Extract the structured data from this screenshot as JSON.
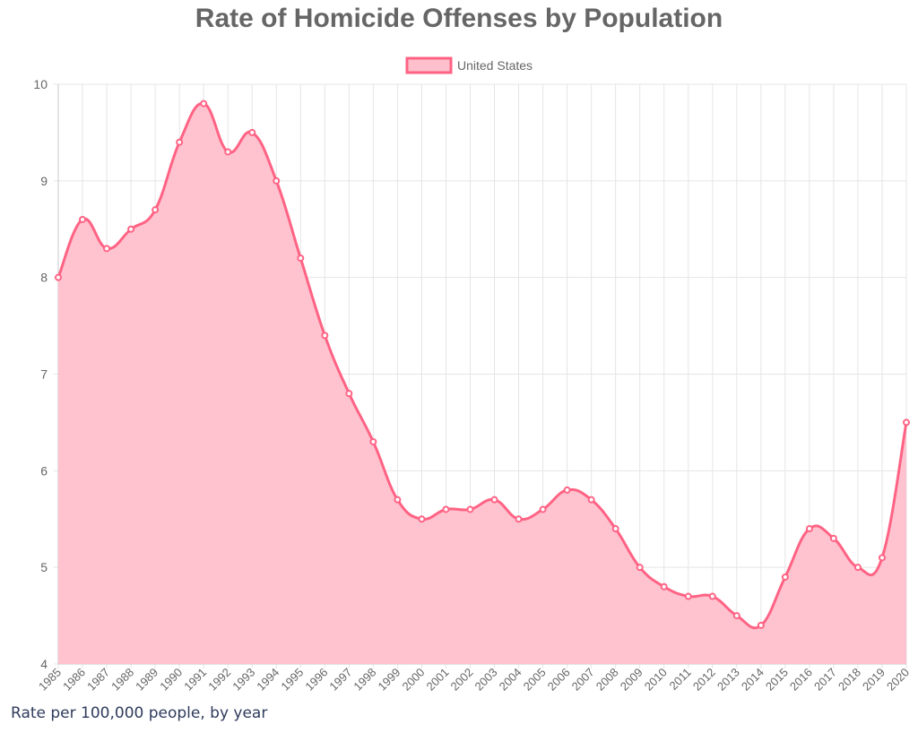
{
  "chart_data": {
    "type": "area",
    "title": "Rate of Homicide Offenses by Population",
    "x": [
      "1985",
      "1986",
      "1987",
      "1988",
      "1989",
      "1990",
      "1991",
      "1992",
      "1993",
      "1994",
      "1995",
      "1996",
      "1997",
      "1998",
      "1999",
      "2000",
      "2001",
      "2002",
      "2003",
      "2004",
      "2005",
      "2006",
      "2007",
      "2008",
      "2009",
      "2010",
      "2011",
      "2012",
      "2013",
      "2014",
      "2015",
      "2016",
      "2017",
      "2018",
      "2019",
      "2020"
    ],
    "series": [
      {
        "name": "United States",
        "values": [
          8.0,
          8.6,
          8.3,
          8.5,
          8.7,
          9.4,
          9.8,
          9.3,
          9.5,
          9.0,
          8.2,
          7.4,
          6.8,
          6.3,
          5.7,
          5.5,
          5.6,
          5.6,
          5.7,
          5.5,
          5.6,
          5.8,
          5.7,
          5.4,
          5.0,
          4.8,
          4.7,
          4.7,
          4.5,
          4.4,
          4.9,
          5.4,
          5.3,
          5.0,
          5.1,
          6.5
        ]
      }
    ],
    "ylim": [
      4,
      10
    ],
    "yticks": [
      "4",
      "5",
      "6",
      "7",
      "8",
      "9",
      "10"
    ],
    "grid": true,
    "legend": "top-center",
    "colors": {
      "line": "#ff6384",
      "fill": "#ffc0cd",
      "grid": "#e5e5e5"
    }
  },
  "footer": {
    "caption": "Rate per 100,000 people, by year"
  }
}
